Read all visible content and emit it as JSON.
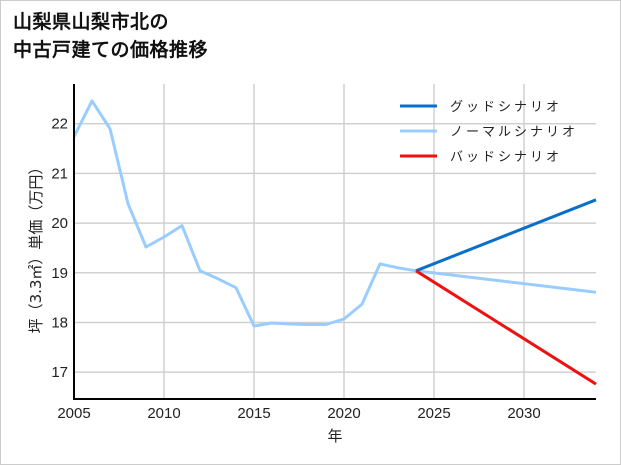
{
  "title_line1": "山梨県山梨市北の",
  "title_line2": "中古戸建ての価格推移",
  "chart_data": {
    "type": "line",
    "title": "山梨県山梨市北の中古戸建ての価格推移",
    "xlabel": "年",
    "ylabel": "坪（3.3㎡）単価（万円）",
    "xlim": [
      2005,
      2034
    ],
    "ylim": [
      16.46,
      22.8
    ],
    "grid": true,
    "legend_position": "upper right",
    "x_ticks": [
      "2005",
      "2010",
      "2015",
      "2020",
      "2025",
      "2030"
    ],
    "y_ticks": [
      "17",
      "18",
      "19",
      "20",
      "21",
      "22"
    ],
    "series": [
      {
        "name": "グッドシナリオ",
        "color": "#0a6fc8",
        "x": [
          2024,
          2034
        ],
        "values": [
          19.04,
          20.47
        ]
      },
      {
        "name": "ノーマルシナリオ",
        "color": "#99ccff",
        "x": [
          2005,
          2006,
          2007,
          2008,
          2009,
          2010,
          2011,
          2012,
          2013,
          2014,
          2015,
          2016,
          2017,
          2018,
          2019,
          2020,
          2021,
          2022,
          2023,
          2024,
          2034
        ],
        "values": [
          21.74,
          22.46,
          21.9,
          20.39,
          19.52,
          19.72,
          19.95,
          19.04,
          18.88,
          18.7,
          17.93,
          17.99,
          17.97,
          17.96,
          17.96,
          18.07,
          18.37,
          19.18,
          19.1,
          19.04,
          18.61
        ]
      },
      {
        "name": "バッドシナリオ",
        "color": "#ee1111",
        "x": [
          2024,
          2034
        ],
        "values": [
          19.04,
          16.76
        ]
      }
    ]
  }
}
